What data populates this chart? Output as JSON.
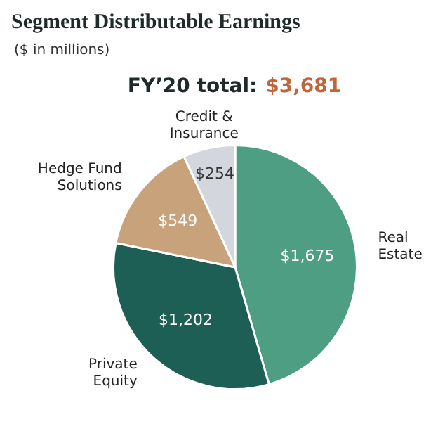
{
  "chart_data": {
    "type": "pie",
    "title": "Segment Distributable Earnings",
    "subtitle": "($ in millions)",
    "annotations": [
      "FY’20 total:",
      "$3,681"
    ],
    "categories": [
      "Real Estate",
      "Private Equity",
      "Hedge Fund Solutions",
      "Credit & Insurance"
    ],
    "values": [
      1675,
      1202,
      549,
      254
    ],
    "value_labels": [
      "$1,675",
      "$1,202",
      "$549",
      "$254"
    ],
    "colors": [
      "#4e9e83",
      "#1d5e55",
      "#c8a27a",
      "#d3d6dc"
    ],
    "legend": false
  }
}
